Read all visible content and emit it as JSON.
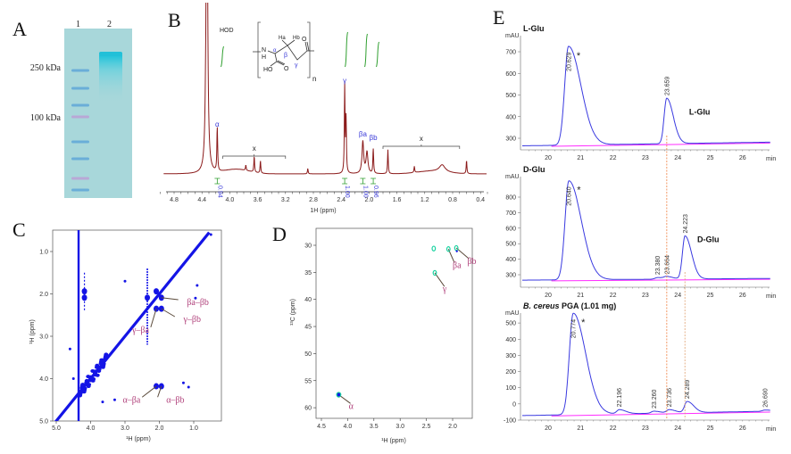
{
  "panel_labels": {
    "a": "A",
    "b": "B",
    "c": "C",
    "d": "D",
    "e": "E"
  },
  "colors": {
    "gel_background": "#a8d7da",
    "gel_ladder": "#6aaed8",
    "gel_ladder_pink": "#b9a8d6",
    "gel_sample": "#25c3d8",
    "spectrum": "#8b1a1a",
    "integral": "#2e9e2e",
    "greek_label": "#3a3ad8",
    "contour_blue": "#1414e6",
    "contour_green": "#19d2a0",
    "annotation": "#b0407a",
    "chromatogram": "#3a3ae0",
    "baseline": "#ff2cff",
    "dashed_line": "#f08040",
    "dashed_line_grey": "#e0a070"
  },
  "gel": {
    "lanes": [
      "1",
      "2"
    ],
    "markers": [
      "250 kDa",
      "100 kDa"
    ]
  },
  "nmr_1h": {
    "xlabel": "1H (ppm)",
    "xlim": [
      5.0,
      0.3
    ],
    "xticks": [
      "4.8",
      "4.4",
      "4.0",
      "3.6",
      "3.2",
      "2.8",
      "2.4",
      "2.0",
      "1.6",
      "1.2",
      "0.8",
      "0.4"
    ],
    "solvent_label": "HOD",
    "peak_labels": [
      {
        "text": "α",
        "ppm": 4.18
      },
      {
        "text": "γ",
        "ppm": 2.35
      },
      {
        "text": "βa",
        "ppm": 2.09
      },
      {
        "text": "βb",
        "ppm": 1.94
      }
    ],
    "impurity_label": "x",
    "impurity_ranges": [
      [
        4.1,
        3.2
      ],
      [
        1.8,
        0.7
      ]
    ],
    "integral_values": [
      "0.94",
      "1.00",
      "1.00",
      "0.96"
    ],
    "integral_ppm": [
      4.18,
      2.35,
      2.09,
      1.94
    ],
    "peaks": [
      {
        "ppm": 4.33,
        "intensity": 420
      },
      {
        "ppm": 4.18,
        "intensity": 50
      },
      {
        "ppm": 3.65,
        "intensity": 18
      },
      {
        "ppm": 3.56,
        "intensity": 14
      },
      {
        "ppm": 3.77,
        "intensity": 6
      },
      {
        "ppm": 2.88,
        "intensity": 6
      },
      {
        "ppm": 2.35,
        "intensity": 98
      },
      {
        "ppm": 2.33,
        "intensity": 60
      },
      {
        "ppm": 2.09,
        "intensity": 36
      },
      {
        "ppm": 2.03,
        "intensity": 24
      },
      {
        "ppm": 1.94,
        "intensity": 28
      },
      {
        "ppm": 1.73,
        "intensity": 27
      },
      {
        "ppm": 1.35,
        "intensity": 7
      },
      {
        "ppm": 0.95,
        "intensity": 8
      },
      {
        "ppm": 0.6,
        "intensity": 15
      }
    ],
    "structure": {
      "n_atom": "N",
      "h_atom": "H",
      "ha": "Ha",
      "hb": "Hb",
      "o_top": "O",
      "ho": "HO",
      "o_acid": "O",
      "alpha": "α",
      "beta": "β",
      "gamma": "γ",
      "repeat": "n"
    }
  },
  "cosy": {
    "xlabel": "¹H (ppm)",
    "ylabel": "¹H (ppm)",
    "xticks": [
      "5.0",
      "4.0",
      "3.0",
      "2.0",
      "1.0"
    ],
    "yticks": [
      "1.0",
      "2.0",
      "3.0",
      "4.0",
      "5.0"
    ],
    "cross_peaks": [
      [
        2.09,
        1.94
      ],
      [
        1.94,
        2.09
      ],
      [
        2.09,
        2.35
      ],
      [
        1.94,
        2.35
      ],
      [
        2.35,
        2.09
      ],
      [
        2.09,
        4.18
      ],
      [
        1.94,
        4.18
      ],
      [
        4.18,
        1.94
      ],
      [
        4.18,
        2.09
      ]
    ],
    "labels": [
      {
        "text": "βa–βb",
        "x": 1.2,
        "y": 2.2,
        "to": [
          1.94,
          2.09
        ]
      },
      {
        "text": "γ–βb",
        "x": 1.3,
        "y": 2.6,
        "to": [
          1.94,
          2.35
        ]
      },
      {
        "text": "γ–βa",
        "x": 2.3,
        "y": 2.85,
        "to": [
          2.09,
          2.35
        ]
      },
      {
        "text": "α–βa",
        "x": 2.55,
        "y": 4.5,
        "to": [
          2.09,
          4.18
        ]
      },
      {
        "text": "α–βb",
        "x": 1.8,
        "y": 4.5,
        "to": [
          1.94,
          4.18
        ]
      }
    ]
  },
  "hsqc": {
    "xlabel": "¹H (ppm)",
    "ylabel": "¹³C (ppm)",
    "xticks": [
      "4.5",
      "4.0",
      "3.5",
      "3.0",
      "2.5",
      "2.0"
    ],
    "yticks": [
      "30",
      "35",
      "40",
      "45",
      "50",
      "55",
      "60"
    ],
    "points": [
      {
        "h": 4.17,
        "c": 57.6,
        "label": "α",
        "lx": 3.98,
        "ly": 60.2
      },
      {
        "h": 2.08,
        "c": 30.7,
        "label": "βa",
        "lx": 2.0,
        "ly": 34.2
      },
      {
        "h": 1.93,
        "c": 30.5,
        "label": "βb",
        "lx": 1.72,
        "ly": 33.5
      },
      {
        "h": 2.34,
        "c": 35.1,
        "label": "γ",
        "lx": 2.19,
        "ly": 38.6
      },
      {
        "h": 2.36,
        "c": 30.6,
        "label": ""
      }
    ]
  },
  "hplc": {
    "x_unit": "min",
    "y_unit": "mAU",
    "xticks": [
      "20",
      "21",
      "22",
      "23",
      "24",
      "25",
      "26"
    ],
    "star": "*",
    "reference_lines": [
      23.66,
      24.22
    ],
    "chromatograms": [
      {
        "title": "L-Glu",
        "title_italic": "",
        "yticks": [
          "300",
          "400",
          "500",
          "600",
          "700"
        ],
        "peaks": [
          {
            "rt": "20.629",
            "height": 725
          },
          {
            "rt": "23.659",
            "height": 485
          }
        ],
        "annotation": "L-Glu"
      },
      {
        "title": "D-Glu",
        "title_italic": "",
        "yticks": [
          "300",
          "400",
          "500",
          "600",
          "700",
          "800"
        ],
        "peaks": [
          {
            "rt": "20.640",
            "height": 905
          },
          {
            "rt": "23.380",
            "height": 282
          },
          {
            "rt": "23.664",
            "height": 286
          },
          {
            "rt": "24.223",
            "height": 550
          }
        ],
        "annotation": "D-Glu"
      },
      {
        "title": " PGA (1.01 mg)",
        "title_italic": "B. cereus",
        "yticks": [
          "-100",
          "0",
          "100",
          "200",
          "300",
          "400",
          "500"
        ],
        "peaks": [
          {
            "rt": "20.774",
            "height": 560
          },
          {
            "rt": "22.196",
            "height": -36
          },
          {
            "rt": "23.260",
            "height": -45
          },
          {
            "rt": "23.736",
            "height": -36
          },
          {
            "rt": "24.289",
            "height": 15
          },
          {
            "rt": "26.690",
            "height": -38
          }
        ],
        "annotation": ""
      }
    ]
  }
}
